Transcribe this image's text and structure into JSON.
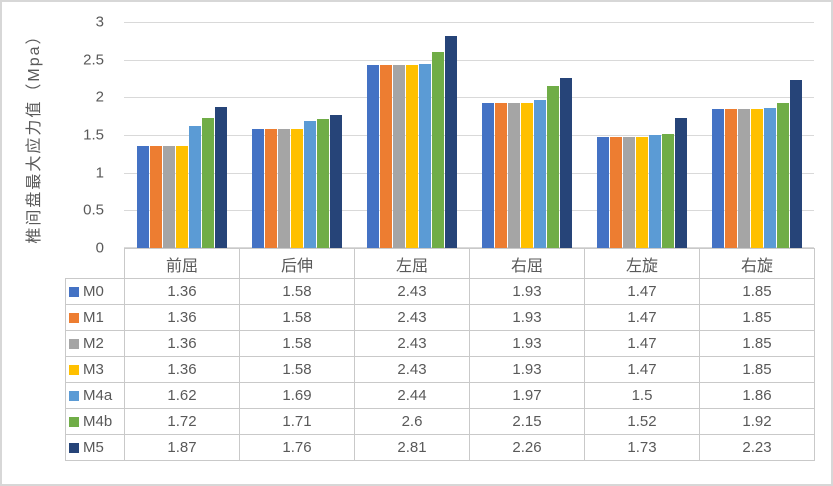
{
  "chart_data": {
    "type": "bar",
    "title": "",
    "y_axis_title": "椎间盘最大应力值（Mpa）",
    "xlabel": "",
    "ylabel": "椎间盘最大应力值（Mpa）",
    "categories": [
      "前屈",
      "后伸",
      "左屈",
      "右屈",
      "左旋",
      "右旋"
    ],
    "series": [
      {
        "name": "M0",
        "color": "#4472C4",
        "values": [
          1.36,
          1.58,
          2.43,
          1.93,
          1.47,
          1.85
        ]
      },
      {
        "name": "M1",
        "color": "#ED7D31",
        "values": [
          1.36,
          1.58,
          2.43,
          1.93,
          1.47,
          1.85
        ]
      },
      {
        "name": "M2",
        "color": "#A5A5A5",
        "values": [
          1.36,
          1.58,
          2.43,
          1.93,
          1.47,
          1.85
        ]
      },
      {
        "name": "M3",
        "color": "#FFC000",
        "values": [
          1.36,
          1.58,
          2.43,
          1.93,
          1.47,
          1.85
        ]
      },
      {
        "name": "M4a",
        "color": "#5B9BD5",
        "values": [
          1.62,
          1.69,
          2.44,
          1.97,
          1.5,
          1.86
        ]
      },
      {
        "name": "M4b",
        "color": "#70AD47",
        "values": [
          1.72,
          1.71,
          2.6,
          2.15,
          1.52,
          1.92
        ]
      },
      {
        "name": "M5",
        "color": "#264478",
        "values": [
          1.87,
          1.76,
          2.81,
          2.26,
          1.73,
          2.23
        ]
      }
    ],
    "y_ticks": [
      3,
      2.5,
      2,
      1.5,
      1,
      0.5,
      0
    ],
    "ylim": [
      0,
      3
    ],
    "grid": true,
    "legend_position": "data-table-left-column",
    "data_table_shown": true
  },
  "colors": {
    "gridline": "#d9d9d9",
    "table_border": "#c9c9c9",
    "text": "#595959",
    "background": "#ffffff",
    "frame_border": "#d7d7d7"
  }
}
